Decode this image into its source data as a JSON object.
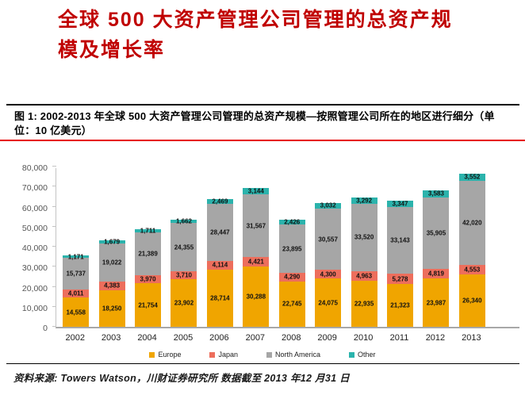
{
  "page": {
    "title_lines": [
      "全球 500 大资产管理公司管理的总资产规",
      "模及增长率"
    ]
  },
  "figure": {
    "caption": "图 1:  2002-2013 年全球 500 大资产管理公司管理的总资产规模—按照管理公司所在的地区进行细分（单位：10 亿美元）"
  },
  "source": {
    "text": "资料来源: Towers Watson，川财证券研究所  数据截至 2013 年12 月31 日"
  },
  "chart_data": {
    "type": "bar",
    "stacked": true,
    "title": "2002-2013 年全球 500 大资产管理公司管理的总资产规模—按照管理公司所在的地区进行细分",
    "unit": "10 亿美元",
    "categories": [
      "2002",
      "2003",
      "2004",
      "2005",
      "2006",
      "2007",
      "2008",
      "2009",
      "2010",
      "2011",
      "2012",
      "2013"
    ],
    "series": [
      {
        "name": "Europe",
        "color": "#F0A500",
        "values": [
          14558,
          18250,
          21754,
          23902,
          28714,
          30288,
          22745,
          24075,
          22935,
          21323,
          23987,
          26340
        ]
      },
      {
        "name": "Japan",
        "color": "#ED6E5C",
        "values": [
          4011,
          4383,
          3970,
          3710,
          4114,
          4421,
          4290,
          4300,
          4963,
          5278,
          4819,
          4553
        ]
      },
      {
        "name": "North America",
        "color": "#A6A6A6",
        "values": [
          15737,
          19022,
          21389,
          24355,
          28447,
          31567,
          23895,
          30557,
          33520,
          33143,
          35905,
          42020
        ]
      },
      {
        "name": "Other",
        "color": "#2BB3AC",
        "values": [
          1171,
          1679,
          1711,
          1662,
          2469,
          3144,
          2426,
          3032,
          3292,
          3347,
          3583,
          3552
        ]
      }
    ],
    "ylim": [
      0,
      80000
    ],
    "ytick_step": 10000,
    "grid": false,
    "legend_position": "bottom",
    "value_labels": true
  }
}
